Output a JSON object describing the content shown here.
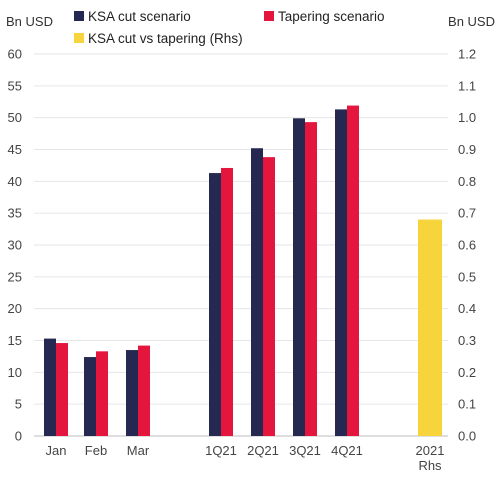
{
  "chart_data": {
    "type": "bar",
    "left_axis": {
      "unit": "Bn USD",
      "min": 0,
      "max": 60,
      "ticks": [
        "0",
        "5",
        "10",
        "15",
        "20",
        "25",
        "30",
        "35",
        "40",
        "45",
        "50",
        "55",
        "60"
      ]
    },
    "right_axis": {
      "unit": "Bn USD",
      "min": 0,
      "max": 1.2,
      "ticks": [
        "0.0",
        "0.1",
        "0.2",
        "0.3",
        "0.4",
        "0.5",
        "0.6",
        "0.7",
        "0.8",
        "0.9",
        "1.0",
        "1.1",
        "1.2"
      ]
    },
    "categories": [
      "Jan",
      "Feb",
      "Mar",
      "1Q21",
      "2Q21",
      "3Q21",
      "4Q21"
    ],
    "series": [
      {
        "name": "KSA cut scenario",
        "color": "#252850",
        "axis": "left",
        "values": [
          15.3,
          12.4,
          13.5,
          41.3,
          45.2,
          49.9,
          51.3
        ]
      },
      {
        "name": "Tapering scenario",
        "color": "#e5163d",
        "axis": "left",
        "values": [
          14.6,
          13.3,
          14.2,
          42.1,
          43.8,
          49.3,
          51.9
        ]
      }
    ],
    "rhs_series": {
      "name": "KSA cut vs tapering (Rhs)",
      "color": "#f8d43c",
      "axis": "right",
      "category": [
        "2021",
        "Rhs"
      ],
      "value": 0.68
    },
    "grid": true,
    "legend_position": "top"
  }
}
